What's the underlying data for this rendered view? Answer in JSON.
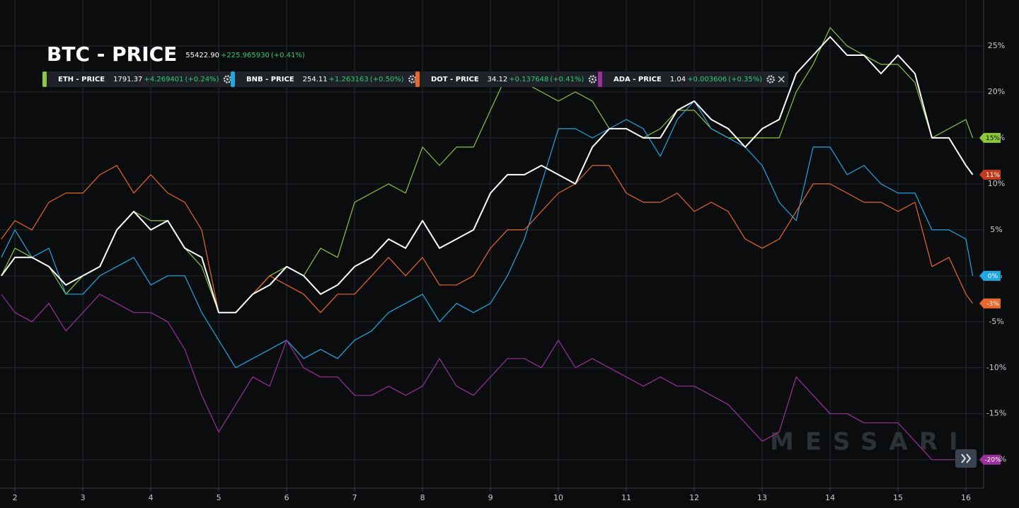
{
  "chart_data": {
    "type": "line",
    "title": "BTC - PRICE",
    "watermark": "MESSARI",
    "x": [
      1.8,
      2,
      2.25,
      2.5,
      2.75,
      3,
      3.25,
      3.5,
      3.75,
      4,
      4.25,
      4.5,
      4.75,
      5,
      5.25,
      5.5,
      5.75,
      6,
      6.25,
      6.5,
      6.75,
      7,
      7.25,
      7.5,
      7.75,
      8,
      8.25,
      8.5,
      8.75,
      9,
      9.25,
      9.5,
      9.75,
      10,
      10.25,
      10.5,
      10.75,
      11,
      11.25,
      11.5,
      11.75,
      12,
      12.25,
      12.5,
      12.75,
      13,
      13.25,
      13.5,
      13.75,
      14,
      14.25,
      14.5,
      14.75,
      15,
      15.25,
      15.5,
      15.75,
      16,
      16.1
    ],
    "xlim": [
      1.78,
      16.26
    ],
    "xticks": [
      2,
      3,
      4,
      5,
      6,
      7,
      8,
      9,
      10,
      11,
      12,
      13,
      14,
      15,
      16
    ],
    "ylim": [
      -23.1,
      30
    ],
    "yticks": [
      {
        "value": -20,
        "label": "-20%"
      },
      {
        "value": -15,
        "label": "-15%"
      },
      {
        "value": -10,
        "label": "-10%"
      },
      {
        "value": -5,
        "label": "-5%"
      },
      {
        "value": 0,
        "label": "0%"
      },
      {
        "value": 5,
        "label": "5%"
      },
      {
        "value": 10,
        "label": "10%"
      },
      {
        "value": 15,
        "label": "15%"
      },
      {
        "value": 20,
        "label": "20%"
      },
      {
        "value": 25,
        "label": "25%"
      }
    ],
    "grid": true,
    "series": [
      {
        "name": "BTC - PRICE",
        "color": "#ffffff",
        "tag_color": "#c23a1c",
        "price": "55422.90",
        "change": "+225.965930",
        "change_pct": "(+0.41%)",
        "end_label": "11%",
        "values": [
          0,
          2,
          2,
          1,
          -1,
          0,
          1,
          5,
          7,
          5,
          6,
          3,
          2,
          -4,
          -4,
          -2,
          -1,
          1,
          0,
          -2,
          -1,
          1,
          2,
          4,
          3,
          6,
          3,
          4,
          5,
          9,
          11,
          11,
          12,
          11,
          10,
          14,
          16,
          16,
          15,
          15,
          18,
          19,
          17,
          16,
          14,
          16,
          17,
          22,
          24,
          26,
          24,
          24,
          22,
          24,
          22,
          15,
          15,
          12,
          11
        ]
      },
      {
        "name": "ETH - PRICE",
        "color": "#8dc63f",
        "tag_color": "#8dc63f",
        "price": "1791.37",
        "change": "+4.269401",
        "change_pct": "(+0.24%)",
        "end_label": "15%",
        "values": [
          0,
          3,
          2,
          1,
          -2,
          0,
          1,
          5,
          7,
          6,
          6,
          3,
          1,
          -4,
          -4,
          -2,
          0,
          1,
          0,
          3,
          2,
          8,
          9,
          10,
          9,
          14,
          12,
          14,
          14,
          18,
          22,
          21,
          20,
          19,
          20,
          19,
          16,
          16,
          15,
          16,
          18,
          18,
          16,
          15,
          15,
          15,
          15,
          20,
          23,
          27,
          25,
          24,
          23,
          23,
          21,
          15,
          16,
          17,
          15
        ]
      },
      {
        "name": "BNB - PRICE",
        "color": "#1ea7e1",
        "tag_color": "#1ea7e1",
        "price": "254.11",
        "change": "+1.263163",
        "change_pct": "(+0.50%)",
        "end_label": "0%",
        "values": [
          2,
          5,
          2,
          3,
          -2,
          -2,
          0,
          1,
          2,
          -1,
          0,
          0,
          -4,
          -7,
          -10,
          -9,
          -8,
          -7,
          -9,
          -8,
          -9,
          -7,
          -6,
          -4,
          -3,
          -2,
          -5,
          -3,
          -4,
          -3,
          0,
          4,
          10,
          16,
          16,
          15,
          16,
          17,
          16,
          13,
          17,
          19,
          16,
          15,
          14,
          12,
          8,
          6,
          14,
          14,
          11,
          12,
          10,
          9,
          9,
          5,
          5,
          4,
          0
        ]
      },
      {
        "name": "DOT - PRICE",
        "color": "#e8672a",
        "tag_color": "#e8672a",
        "price": "34.12",
        "change": "+0.137648",
        "change_pct": "(+0.41%)",
        "end_label": "-3%",
        "values": [
          4,
          6,
          5,
          8,
          9,
          9,
          11,
          12,
          9,
          11,
          9,
          8,
          5,
          -4,
          -4,
          -2,
          0,
          -1,
          -2,
          -4,
          -2,
          -2,
          0,
          2,
          0,
          2,
          -1,
          -1,
          0,
          3,
          5,
          5,
          7,
          9,
          10,
          12,
          12,
          9,
          8,
          8,
          9,
          7,
          8,
          7,
          4,
          3,
          4,
          7,
          10,
          10,
          9,
          8,
          8,
          7,
          8,
          1,
          2,
          -2,
          -3
        ]
      },
      {
        "name": "ADA - PRICE",
        "color": "#9b2f9b",
        "tag_color": "#9b2f9b",
        "price": "1.04",
        "change": "+0.003606",
        "change_pct": "(+0.35%)",
        "end_label": "-20%",
        "values": [
          -2,
          -4,
          -5,
          -3,
          -6,
          -4,
          -2,
          -3,
          -4,
          -4,
          -5,
          -8,
          -13,
          -17,
          -14,
          -11,
          -12,
          -7,
          -10,
          -11,
          -11,
          -13,
          -13,
          -12,
          -13,
          -12,
          -9,
          -12,
          -13,
          -11,
          -9,
          -9,
          -10,
          -7,
          -10,
          -9,
          -10,
          -11,
          -12,
          -11,
          -12,
          -12,
          -13,
          -14,
          -16,
          -18,
          -17,
          -11,
          -13,
          -15,
          -15,
          -16,
          -16,
          -16,
          -18,
          -20,
          -20,
          -20,
          -20
        ]
      }
    ]
  }
}
